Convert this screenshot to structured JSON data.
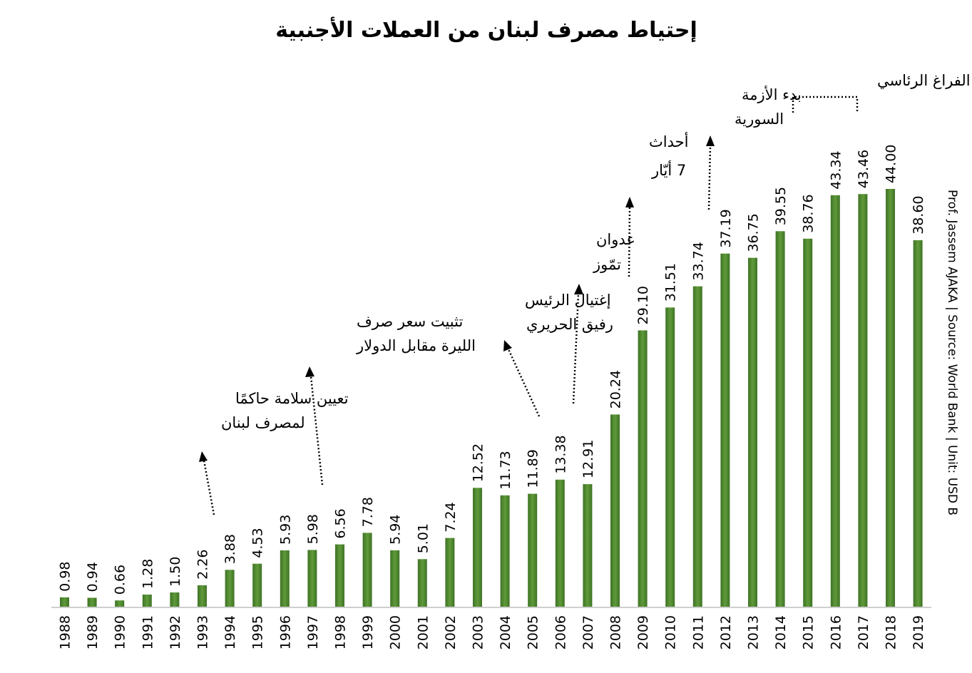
{
  "chart_data": {
    "type": "bar",
    "title": "إحتياط مصرف لبنان من العملات الأجنبية",
    "categories": [
      "1988",
      "1989",
      "1990",
      "1991",
      "1992",
      "1993",
      "1994",
      "1995",
      "1996",
      "1997",
      "1998",
      "1999",
      "2000",
      "2001",
      "2002",
      "2003",
      "2004",
      "2005",
      "2006",
      "2007",
      "2008",
      "2009",
      "2010",
      "2011",
      "2012",
      "2013",
      "2014",
      "2015",
      "2016",
      "2017",
      "2018",
      "2019"
    ],
    "values": [
      0.98,
      0.94,
      0.66,
      1.28,
      1.5,
      2.26,
      3.88,
      4.53,
      5.93,
      5.98,
      6.56,
      7.78,
      5.94,
      5.01,
      7.24,
      12.52,
      11.73,
      11.89,
      13.38,
      12.91,
      20.24,
      29.1,
      31.51,
      33.74,
      37.19,
      36.75,
      39.55,
      38.76,
      43.34,
      43.46,
      44.0,
      38.6
    ],
    "value_labels": [
      "0.98",
      "0.94",
      "0.66",
      "1.28",
      "1.50",
      "2.26",
      "3.88",
      "4.53",
      "5.93",
      "5.98",
      "6.56",
      "7.78",
      "5.94",
      "5.01",
      "7.24",
      "12.52",
      "11.73",
      "11.89",
      "13.38",
      "12.91",
      "20.24",
      "29.10",
      "31.51",
      "33.74",
      "37.19",
      "36.75",
      "39.55",
      "38.76",
      "43.34",
      "43.46",
      "44.00",
      "38.60"
    ],
    "ylim": [
      0,
      44
    ],
    "grid": false,
    "legend": "none",
    "bar_color": "#5f9a3a",
    "source_note": "Prof. Jassem AJAKA | Source: World Bank | Unit: USD B",
    "annotations": [
      {
        "lines": [
          "تعيين سلامة حاكمًا",
          "لمصرف لبنان"
        ]
      },
      {
        "lines": [
          "تثبيت سعر صرف",
          "الليرة مقابل الدولار"
        ]
      },
      {
        "lines": [
          "إغتيال الرئيس",
          "رفيق الحريري"
        ]
      },
      {
        "lines": [
          "عدوان",
          "تمّوز"
        ]
      },
      {
        "lines": [
          "أحداث",
          "7 أيّار"
        ]
      },
      {
        "lines": [
          "بدء الأزمة",
          "السورية"
        ]
      },
      {
        "lines": [
          "الفراغ الرئاسي"
        ]
      }
    ]
  }
}
